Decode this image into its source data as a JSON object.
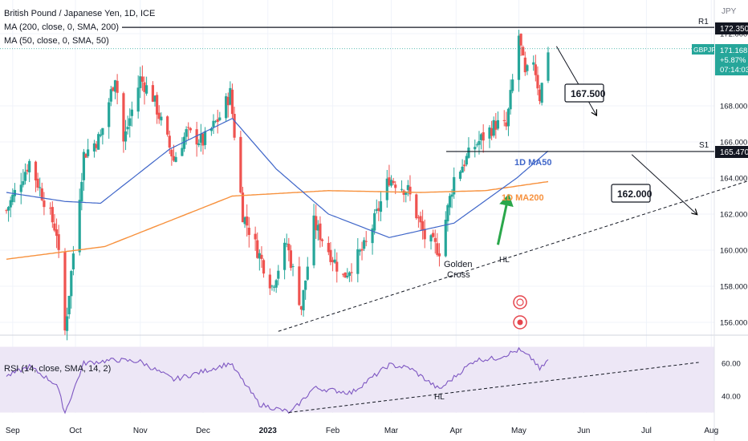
{
  "header": {
    "symbol_title": "British Pound / Japanese Yen, 1D, ICE",
    "ma200_legend": "MA (200, close, 0, SMA, 200)",
    "ma50_legend": "MA (50, close, 0, SMA, 50)",
    "currency": "JPY",
    "rsi_legend": "RSI (14, close, SMA, 14, 2)"
  },
  "price_tag": {
    "ticker": "GBPJPY",
    "price": "171.168",
    "change": "+5.87%",
    "countdown": "07:14:03"
  },
  "levels": {
    "r1": {
      "label": "R1",
      "value": 172.35,
      "value_text": "172.350"
    },
    "s1": {
      "label": "S1",
      "value": 165.47,
      "value_text": "165.470"
    }
  },
  "annotations": {
    "target1": {
      "text": "167.500",
      "value": 167.5
    },
    "target2": {
      "text": "162.000",
      "value": 162.0
    },
    "ma50_label": "1D MA50",
    "ma200_label": "1D MA200",
    "golden_cross_line1": "Golden",
    "golden_cross_line2": "Cross",
    "hl_price": "HL",
    "hl_rsi": "HL"
  },
  "colors": {
    "up": "#26a69a",
    "down": "#ef5350",
    "ma50": "#3f66c9",
    "ma200": "#f7913d",
    "rsi_line": "#7e57c2",
    "rsi_band": "#ede7f6",
    "tag_green": "#26a69a",
    "arrow_green": "#2aa74b"
  },
  "chart_data": {
    "type": "candlestick",
    "price_axis": {
      "ticks": [
        "172.000",
        "168.000",
        "166.000",
        "164.000",
        "162.000",
        "160.000",
        "158.000",
        "156.000"
      ],
      "tick_values": [
        172,
        168,
        166,
        164,
        162,
        160,
        158,
        156
      ],
      "range": [
        155.1,
        173.3
      ]
    },
    "rsi_axis": {
      "ticks": [
        "60.00",
        "40.00"
      ],
      "tick_values": [
        60,
        40
      ],
      "band": [
        30,
        70
      ]
    },
    "x_axis": {
      "labels": [
        "Sep",
        "Oct",
        "Nov",
        "Dec",
        "2023",
        "Feb",
        "Mar",
        "Apr",
        "May",
        "Jun",
        "Jul",
        "Aug"
      ],
      "label_dates": [
        "2022-09-01",
        "2022-10-01",
        "2022-11-01",
        "2022-12-01",
        "2023-01-01",
        "2023-02-01",
        "2023-03-01",
        "2023-04-01",
        "2023-05-01",
        "2023-06-01",
        "2023-07-01",
        "2023-08-01"
      ]
    },
    "price_anchors": [
      {
        "date": "2022-08-29",
        "close": 162.2
      },
      {
        "date": "2022-09-09",
        "close": 164.9
      },
      {
        "date": "2022-09-22",
        "close": 161.0
      },
      {
        "date": "2022-09-26",
        "close": 155.5
      },
      {
        "date": "2022-10-05",
        "close": 165.3
      },
      {
        "date": "2022-10-13",
        "close": 166.3
      },
      {
        "date": "2022-10-20",
        "close": 169.7
      },
      {
        "date": "2022-10-24",
        "close": 166.0
      },
      {
        "date": "2022-11-01",
        "close": 169.5
      },
      {
        "date": "2022-11-07",
        "close": 168.5
      },
      {
        "date": "2022-11-17",
        "close": 165.0
      },
      {
        "date": "2022-11-23",
        "close": 166.5
      },
      {
        "date": "2022-12-01",
        "close": 166.0
      },
      {
        "date": "2022-12-09",
        "close": 167.4
      },
      {
        "date": "2022-12-14",
        "close": 168.7
      },
      {
        "date": "2022-12-20",
        "close": 162.0
      },
      {
        "date": "2023-01-03",
        "close": 158.0
      },
      {
        "date": "2023-01-10",
        "close": 160.4
      },
      {
        "date": "2023-01-17",
        "close": 156.8
      },
      {
        "date": "2023-01-23",
        "close": 161.5
      },
      {
        "date": "2023-02-06",
        "close": 158.5
      },
      {
        "date": "2023-02-17",
        "close": 160.3
      },
      {
        "date": "2023-02-28",
        "close": 164.0
      },
      {
        "date": "2023-03-09",
        "close": 163.3
      },
      {
        "date": "2023-03-17",
        "close": 160.7
      },
      {
        "date": "2023-03-24",
        "close": 160.0
      },
      {
        "date": "2023-03-31",
        "close": 164.0
      },
      {
        "date": "2023-04-10",
        "close": 165.8
      },
      {
        "date": "2023-04-20",
        "close": 167.0
      },
      {
        "date": "2023-04-25",
        "close": 166.8
      },
      {
        "date": "2023-05-01",
        "close": 171.9
      },
      {
        "date": "2023-05-04",
        "close": 169.6
      },
      {
        "date": "2023-05-08",
        "close": 170.6
      },
      {
        "date": "2023-05-11",
        "close": 168.5
      },
      {
        "date": "2023-05-15",
        "close": 171.168
      }
    ],
    "ma50_anchors": [
      {
        "date": "2022-08-29",
        "value": 163.2
      },
      {
        "date": "2022-09-26",
        "value": 162.7
      },
      {
        "date": "2022-10-13",
        "value": 162.6
      },
      {
        "date": "2022-11-15",
        "value": 165.6
      },
      {
        "date": "2022-12-15",
        "value": 167.3
      },
      {
        "date": "2023-01-05",
        "value": 164.5
      },
      {
        "date": "2023-01-30",
        "value": 162.0
      },
      {
        "date": "2023-02-28",
        "value": 160.7
      },
      {
        "date": "2023-03-31",
        "value": 161.5
      },
      {
        "date": "2023-04-30",
        "value": 164.0
      },
      {
        "date": "2023-05-15",
        "value": 165.5
      }
    ],
    "ma200_anchors": [
      {
        "date": "2022-08-29",
        "value": 159.5
      },
      {
        "date": "2022-10-15",
        "value": 160.2
      },
      {
        "date": "2022-12-15",
        "value": 163.0
      },
      {
        "date": "2023-01-30",
        "value": 163.3
      },
      {
        "date": "2023-03-15",
        "value": 163.2
      },
      {
        "date": "2023-04-15",
        "value": 163.3
      },
      {
        "date": "2023-05-15",
        "value": 163.8
      }
    ],
    "rsi_anchors": [
      {
        "date": "2022-08-29",
        "value": 52
      },
      {
        "date": "2022-09-09",
        "value": 58
      },
      {
        "date": "2022-09-22",
        "value": 47
      },
      {
        "date": "2022-09-26",
        "value": 30
      },
      {
        "date": "2022-10-05",
        "value": 60
      },
      {
        "date": "2022-10-20",
        "value": 62
      },
      {
        "date": "2022-11-01",
        "value": 61
      },
      {
        "date": "2022-11-17",
        "value": 50
      },
      {
        "date": "2022-12-01",
        "value": 55
      },
      {
        "date": "2022-12-14",
        "value": 60
      },
      {
        "date": "2022-12-28",
        "value": 35
      },
      {
        "date": "2023-01-12",
        "value": 30
      },
      {
        "date": "2023-01-23",
        "value": 45
      },
      {
        "date": "2023-02-10",
        "value": 42
      },
      {
        "date": "2023-02-28",
        "value": 59
      },
      {
        "date": "2023-03-10",
        "value": 57
      },
      {
        "date": "2023-03-24",
        "value": 44
      },
      {
        "date": "2023-04-10",
        "value": 62
      },
      {
        "date": "2023-04-20",
        "value": 63
      },
      {
        "date": "2023-05-01",
        "value": 68
      },
      {
        "date": "2023-05-08",
        "value": 62
      },
      {
        "date": "2023-05-11",
        "value": 56
      },
      {
        "date": "2023-05-15",
        "value": 62
      }
    ],
    "trendline_price": {
      "start": {
        "date": "2023-01-06",
        "value": 155.5
      },
      "end": {
        "date": "2023-08-31",
        "value": 164.3
      }
    },
    "trendline_rsi": {
      "start": {
        "date": "2023-01-11",
        "value": 30
      },
      "end": {
        "date": "2023-07-26",
        "value": 60.5
      }
    },
    "projection_1": {
      "start": {
        "date": "2023-05-19",
        "value": 171.3
      },
      "end": {
        "date": "2023-06-07",
        "value": 167.5
      }
    },
    "projection_2": {
      "start": {
        "date": "2023-06-24",
        "value": 165.3
      },
      "end": {
        "date": "2023-07-25",
        "value": 162.0
      }
    },
    "golden_cross_arrow": {
      "start": {
        "date": "2023-04-21",
        "value": 160.3
      },
      "end": {
        "date": "2023-04-26",
        "value": 163.0
      }
    }
  }
}
